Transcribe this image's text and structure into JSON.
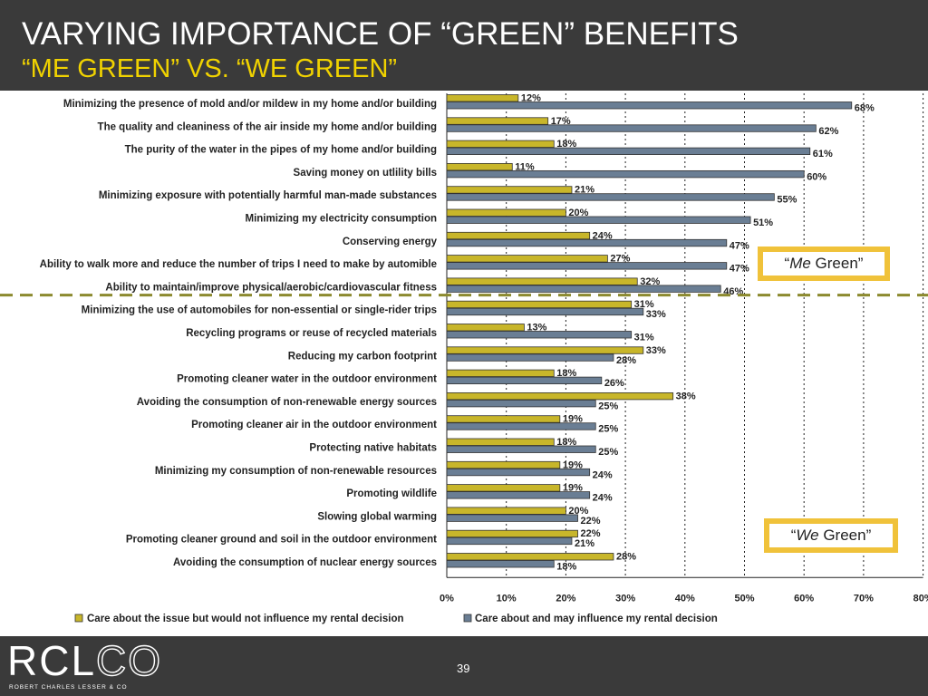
{
  "header": {
    "title": "VARYING IMPORTANCE OF “GREEN” BENEFITS",
    "subtitle": "“ME GREEN” VS. “WE GREEN”"
  },
  "callouts": {
    "me": {
      "quote_open": "“",
      "emphasis": "Me",
      "rest": " Green”"
    },
    "we": {
      "quote_open": "“",
      "emphasis": "We",
      "rest": " Green”"
    }
  },
  "footer": {
    "logo_bold": "RCL",
    "logo_thin": "CO",
    "logo_subtitle": "ROBERT CHARLES LESSER & CO",
    "page_number": "39"
  },
  "colors": {
    "header_bg": "#3a3a3a",
    "subtitle": "#f0d200",
    "series_yellow": "#c8b62a",
    "series_blue": "#6a7e94",
    "divider": "#8c8a2e",
    "callout_border": "#f0c23a"
  },
  "chart_data": {
    "type": "bar",
    "orientation": "horizontal",
    "categories": [
      "Minimizing the presence of mold and/or mildew in my home and/or building",
      "The quality and cleaniness of the air inside my home and/or building",
      "The purity of the water in the pipes of my home and/or building",
      "Saving money on utlility bills",
      "Minimizing exposure with potentially harmful man-made substances",
      "Minimizing my electricity consumption",
      "Conserving energy",
      "Ability to walk more and reduce the number of trips I need to make by automible",
      "Ability to maintain/improve physical/aerobic/cardiovascular fitness",
      "Minimizing the use of automobiles for non-essential or single-rider trips",
      "Recycling programs or reuse of recycled materials",
      "Reducing my carbon footprint",
      "Promoting cleaner water in the outdoor environment",
      "Avoiding the consumption of non-renewable energy sources",
      "Promoting cleaner air in the outdoor environment",
      "Protecting native habitats",
      "Minimizing my consumption of non-renewable resources",
      "Promoting wildlife",
      "Slowing global warming",
      "Promoting cleaner ground and soil in the outdoor environment",
      "Avoiding the consumption of nuclear energy sources"
    ],
    "series": [
      {
        "name": "Care about the issue but would not influence my rental decision",
        "color": "#c8b62a",
        "values": [
          12,
          17,
          18,
          11,
          21,
          20,
          24,
          27,
          32,
          31,
          13,
          33,
          18,
          38,
          19,
          18,
          19,
          19,
          20,
          22,
          28
        ]
      },
      {
        "name": "Care about and may influence my rental decision",
        "color": "#6a7e94",
        "values": [
          68,
          62,
          61,
          60,
          55,
          51,
          47,
          47,
          46,
          33,
          31,
          28,
          26,
          25,
          25,
          25,
          24,
          24,
          22,
          21,
          18
        ]
      }
    ],
    "value_suffix": "%",
    "xlim": [
      0,
      80
    ],
    "ticks": [
      "0%",
      "10%",
      "20%",
      "30%",
      "40%",
      "50%",
      "60%",
      "70%",
      "80%"
    ],
    "grid": true,
    "legend_position": "bottom"
  }
}
